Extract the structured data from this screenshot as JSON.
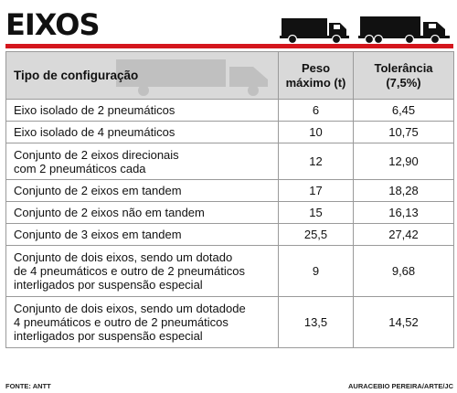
{
  "title": "EIXOS",
  "icons": {
    "truck_small": "truck-icon",
    "truck_large": "semi-truck-icon"
  },
  "colors": {
    "accent": "#d4161d",
    "header_bg": "#d9d9d9",
    "border": "#9a9a9a"
  },
  "headers": {
    "config": "Tipo de configuração",
    "peso_line1": "Peso",
    "peso_line2": "máximo (t)",
    "tol_line1": "Tolerância",
    "tol_line2": "(7,5%)"
  },
  "rows": [
    {
      "lines": [
        "Eixo isolado de 2 pneumáticos"
      ],
      "peso": "6",
      "tol": "6,45"
    },
    {
      "lines": [
        "Eixo isolado de 4 pneumáticos"
      ],
      "peso": "10",
      "tol": "10,75"
    },
    {
      "lines": [
        "Conjunto de 2 eixos direcionais",
        "com 2 pneumáticos cada"
      ],
      "peso": "12",
      "tol": "12,90"
    },
    {
      "lines": [
        "Conjunto de 2 eixos em tandem"
      ],
      "peso": "17",
      "tol": "18,28"
    },
    {
      "lines": [
        "Conjunto de 2 eixos não em tandem"
      ],
      "peso": "15",
      "tol": "16,13"
    },
    {
      "lines": [
        "Conjunto de 3 eixos em tandem"
      ],
      "peso": "25,5",
      "tol": "27,42"
    },
    {
      "lines": [
        "Conjunto de dois eixos, sendo um dotado",
        "de 4 pneumáticos e outro de 2 pneumáticos",
        "interligados por suspensão especial"
      ],
      "peso": "9",
      "tol": "9,68"
    },
    {
      "lines": [
        "Conjunto de dois eixos, sendo um dotadode",
        "4 pneumáticos e outro de 2 pneumáticos",
        "interligados por suspensão especial"
      ],
      "peso": "13,5",
      "tol": "14,52"
    }
  ],
  "footer": {
    "source": "FONTE: ANTT",
    "credit": "AURACEBIO PEREIRA/ARTE/JC"
  }
}
